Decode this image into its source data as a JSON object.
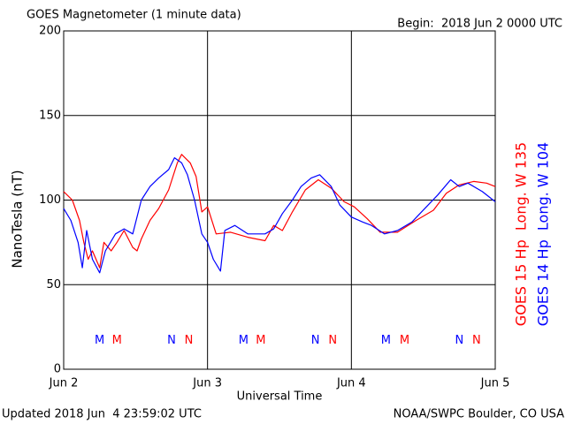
{
  "chart_data": {
    "type": "line",
    "title": "GOES Magnetometer (1 minute data)",
    "subtitle": "Begin:  2018 Jun 2 0000 UTC",
    "x_label": "Universal Time",
    "y_label": "NanoTesla (nT)",
    "footer_left": "Updated 2018 Jun  4 23:59:02 UTC",
    "footer_right": "NOAA/SWPC Boulder, CO USA",
    "xlim": [
      0,
      3
    ],
    "xticks": [
      {
        "value": 0,
        "label": "Jun 2"
      },
      {
        "value": 1,
        "label": "Jun 3"
      },
      {
        "value": 2,
        "label": "Jun 4"
      },
      {
        "value": 3,
        "label": "Jun 5"
      }
    ],
    "ylim": [
      0,
      200
    ],
    "yticks": [
      0,
      50,
      100,
      150,
      200
    ],
    "grid": true,
    "series": [
      {
        "name": "GOES 15 Hp  Long. W 135",
        "color": "#ff0000",
        "x": [
          0,
          0.06,
          0.11,
          0.14,
          0.17,
          0.2,
          0.25,
          0.28,
          0.33,
          0.37,
          0.42,
          0.48,
          0.51,
          0.54,
          0.6,
          0.66,
          0.73,
          0.79,
          0.82,
          0.88,
          0.92,
          0.96,
          1.0,
          1.06,
          1.16,
          1.28,
          1.4,
          1.46,
          1.52,
          1.59,
          1.68,
          1.77,
          1.86,
          1.95,
          2.02,
          2.11,
          2.2,
          2.32,
          2.45,
          2.57,
          2.66,
          2.75,
          2.85,
          2.94,
          3.0
        ],
        "values": [
          105,
          100,
          88,
          75,
          65,
          70,
          60,
          75,
          70,
          75,
          82,
          72,
          70,
          77,
          88,
          95,
          106,
          122,
          127,
          122,
          114,
          93,
          96,
          80,
          81,
          78,
          76,
          85,
          82,
          93,
          106,
          112,
          107,
          99,
          96,
          89,
          81,
          81,
          88,
          94,
          104,
          109,
          111,
          110,
          108
        ]
      },
      {
        "name": "GOES 14 Hp  Long. W 104",
        "color": "#0000ff",
        "x": [
          0,
          0.05,
          0.1,
          0.13,
          0.16,
          0.2,
          0.25,
          0.29,
          0.36,
          0.42,
          0.48,
          0.54,
          0.6,
          0.66,
          0.73,
          0.77,
          0.82,
          0.86,
          0.91,
          0.96,
          1.0,
          1.04,
          1.09,
          1.12,
          1.19,
          1.28,
          1.4,
          1.46,
          1.52,
          1.59,
          1.65,
          1.72,
          1.78,
          1.86,
          1.92,
          2.0,
          2.08,
          2.14,
          2.23,
          2.32,
          2.42,
          2.51,
          2.6,
          2.69,
          2.75,
          2.81,
          2.91,
          3.0
        ],
        "values": [
          95,
          88,
          75,
          60,
          82,
          65,
          57,
          70,
          80,
          83,
          80,
          100,
          108,
          113,
          118,
          125,
          122,
          115,
          100,
          80,
          75,
          65,
          58,
          82,
          85,
          80,
          80,
          83,
          92,
          100,
          108,
          113,
          115,
          108,
          97,
          90,
          87,
          85,
          80,
          82,
          87,
          95,
          103,
          112,
          108,
          110,
          105,
          99
        ]
      }
    ],
    "annotations": [
      {
        "text": "M",
        "x": 0.25,
        "y": 17,
        "series": 1
      },
      {
        "text": "M",
        "x": 0.37,
        "y": 17,
        "series": 0
      },
      {
        "text": "N",
        "x": 0.75,
        "y": 17,
        "series": 1
      },
      {
        "text": "N",
        "x": 0.87,
        "y": 17,
        "series": 0
      },
      {
        "text": "M",
        "x": 1.25,
        "y": 17,
        "series": 1
      },
      {
        "text": "M",
        "x": 1.37,
        "y": 17,
        "series": 0
      },
      {
        "text": "N",
        "x": 1.75,
        "y": 17,
        "series": 1
      },
      {
        "text": "N",
        "x": 1.87,
        "y": 17,
        "series": 0
      },
      {
        "text": "M",
        "x": 2.24,
        "y": 17,
        "series": 1
      },
      {
        "text": "M",
        "x": 2.37,
        "y": 17,
        "series": 0
      },
      {
        "text": "N",
        "x": 2.75,
        "y": 17,
        "series": 1
      },
      {
        "text": "N",
        "x": 2.87,
        "y": 17,
        "series": 0
      }
    ]
  }
}
